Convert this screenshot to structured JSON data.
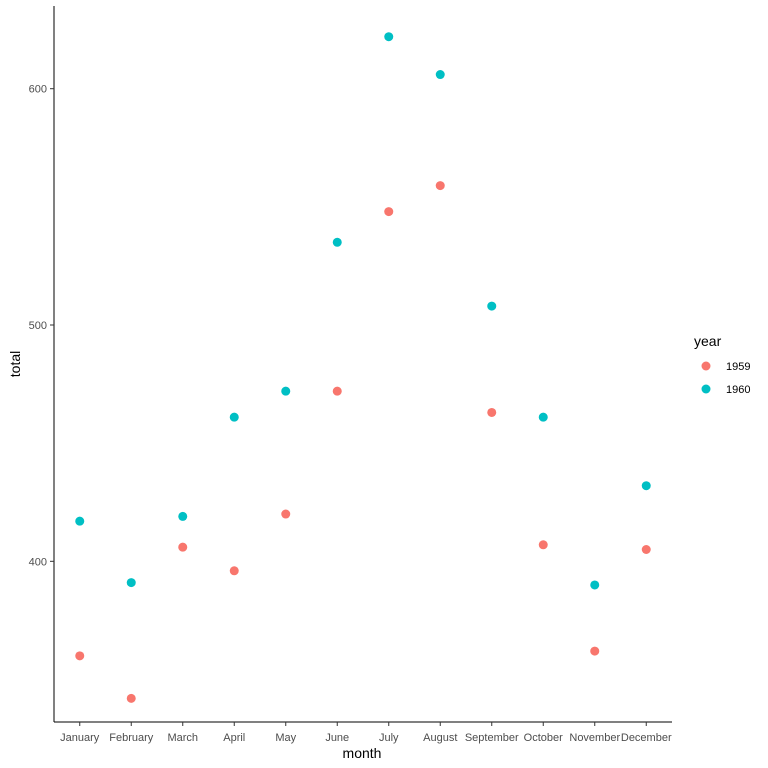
{
  "chart_data": {
    "type": "scatter",
    "title": "",
    "xlabel": "month",
    "ylabel": "total",
    "categories": [
      "January",
      "February",
      "March",
      "April",
      "May",
      "June",
      "July",
      "August",
      "September",
      "October",
      "November",
      "December"
    ],
    "ylim": [
      332,
      635
    ],
    "yticks": [
      400,
      500,
      600
    ],
    "grid": false,
    "legend": {
      "title": "year",
      "placement": "right"
    },
    "series": [
      {
        "name": "1959",
        "color": "#F8766D",
        "values": [
          360,
          342,
          406,
          396,
          420,
          472,
          548,
          559,
          463,
          407,
          362,
          405
        ]
      },
      {
        "name": "1960",
        "color": "#00BFC4",
        "values": [
          417,
          391,
          419,
          461,
          472,
          535,
          622,
          606,
          508,
          461,
          390,
          432
        ]
      }
    ]
  }
}
